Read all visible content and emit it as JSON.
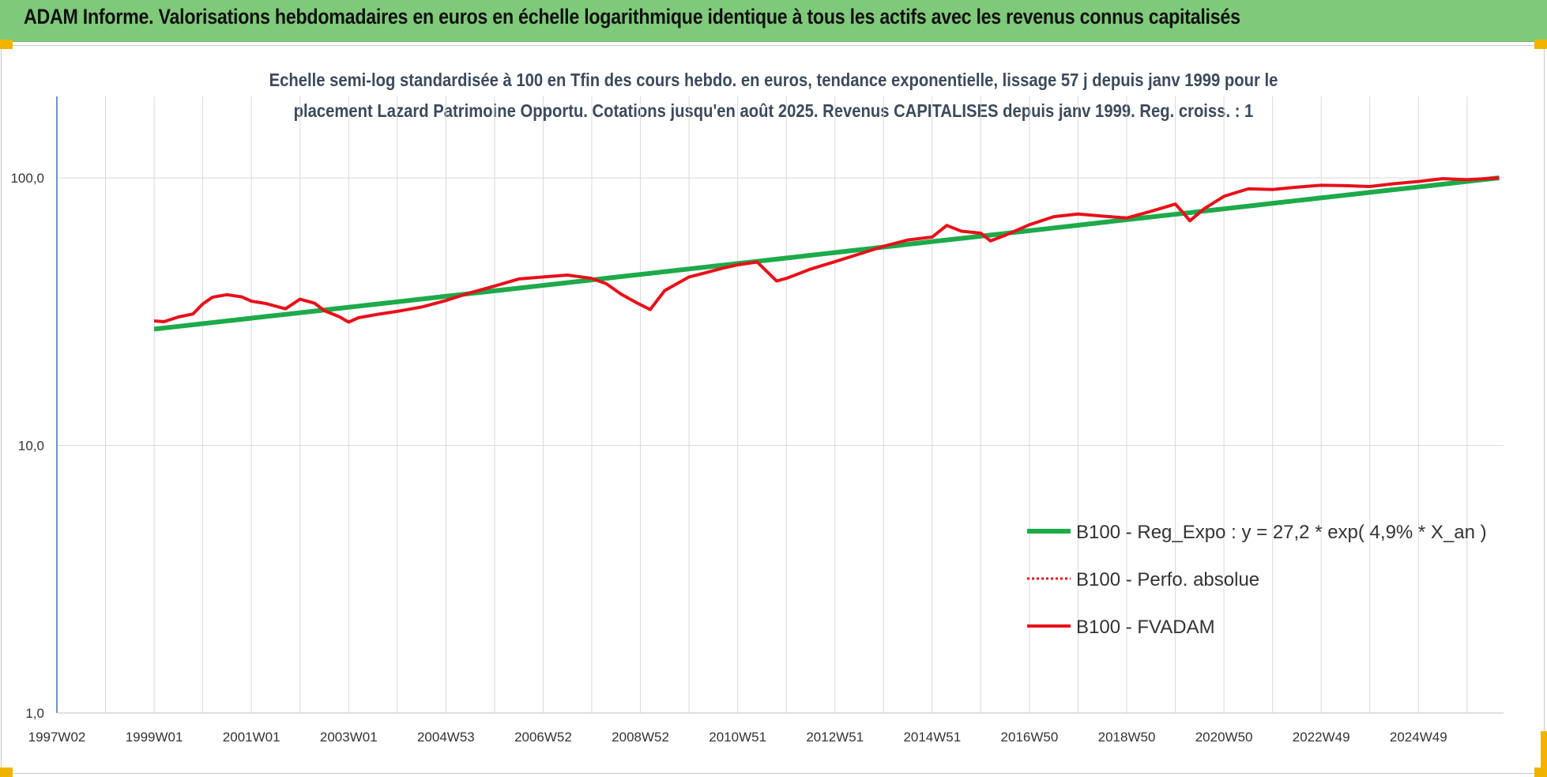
{
  "header": {
    "title": "ADAM Informe. Valorisations hebdomadaires en euros en échelle logarithmique identique à tous les actifs avec les revenus connus capitalisés"
  },
  "colors": {
    "banner": "#7fc97a",
    "trend": "#1daa4a",
    "perf": "#e8101a",
    "grid": "#d9d9d9"
  },
  "chart_data": {
    "type": "line",
    "title_line1": "Echelle semi-log standardisée à 100 en Tfin des cours hebdo. en euros, tendance exponentielle, lissage 57 j depuis janv 1999 pour le",
    "title_line2": "placement Lazard Patrimoine Opportu. Cotations jusqu'en août 2025. Revenus CAPITALISES depuis janv 1999. Reg. croiss. : 1",
    "y_scale": "log",
    "ylim": [
      1,
      200
    ],
    "y_ticks": [
      {
        "value": 100,
        "label": "100,0"
      },
      {
        "value": 10,
        "label": "10,0"
      },
      {
        "value": 1,
        "label": "1,0"
      }
    ],
    "xlim": [
      1997.0,
      2026.75
    ],
    "x_ticks": [
      {
        "value": 1997.0,
        "label": "1997W02"
      },
      {
        "value": 1999.0,
        "label": "1999W01"
      },
      {
        "value": 2001.0,
        "label": "2001W01"
      },
      {
        "value": 2003.0,
        "label": "2003W01"
      },
      {
        "value": 2005.0,
        "label": "2004W53"
      },
      {
        "value": 2007.0,
        "label": "2006W52"
      },
      {
        "value": 2009.0,
        "label": "2008W52"
      },
      {
        "value": 2011.0,
        "label": "2010W51"
      },
      {
        "value": 2013.0,
        "label": "2012W51"
      },
      {
        "value": 2015.0,
        "label": "2014W51"
      },
      {
        "value": 2017.0,
        "label": "2016W50"
      },
      {
        "value": 2019.0,
        "label": "2018W50"
      },
      {
        "value": 2021.0,
        "label": "2020W50"
      },
      {
        "value": 2023.0,
        "label": "2022W49"
      },
      {
        "value": 2025.0,
        "label": "2024W49"
      }
    ],
    "legend_position": "bottom-right",
    "grid": "vertical and horizontal",
    "series": [
      {
        "name": "B100 - Reg_Expo : y = 27,2 * exp( 4,9% *  X_an )",
        "style": "solid-green",
        "x": [
          1999.0,
          2026.66
        ],
        "y": [
          27.2,
          100.0
        ]
      },
      {
        "name": "B100 - Perfo. absolue",
        "style": "dotted-red",
        "x": [],
        "y": []
      },
      {
        "name": "B100 - FVADAM",
        "style": "solid-red",
        "x": [
          1999.0,
          1999.2,
          1999.5,
          1999.8,
          2000.0,
          2000.2,
          2000.5,
          2000.8,
          2001.0,
          2001.3,
          2001.7,
          2002.0,
          2002.3,
          2002.5,
          2002.8,
          2003.0,
          2003.2,
          2003.6,
          2004.0,
          2004.5,
          2005.0,
          2005.5,
          2006.0,
          2006.5,
          2007.0,
          2007.5,
          2008.0,
          2008.3,
          2008.6,
          2008.9,
          2009.2,
          2009.5,
          2010.0,
          2010.3,
          2010.7,
          2011.0,
          2011.4,
          2011.8,
          2012.0,
          2012.5,
          2013.0,
          2013.5,
          2014.0,
          2014.5,
          2015.0,
          2015.3,
          2015.6,
          2016.0,
          2016.2,
          2016.5,
          2017.0,
          2017.5,
          2018.0,
          2018.6,
          2019.0,
          2019.5,
          2020.0,
          2020.15,
          2020.3,
          2020.6,
          2021.0,
          2021.5,
          2022.0,
          2022.5,
          2023.0,
          2023.5,
          2024.0,
          2024.5,
          2025.0,
          2025.5,
          2026.0,
          2026.66
        ],
        "y": [
          29.2,
          29.0,
          30.2,
          31.0,
          33.8,
          35.8,
          36.6,
          35.9,
          34.6,
          33.9,
          32.4,
          35.2,
          34.0,
          31.9,
          30.3,
          28.9,
          30.0,
          30.9,
          31.7,
          32.9,
          34.8,
          37.2,
          39.4,
          41.9,
          42.6,
          43.3,
          42.1,
          40.2,
          36.8,
          34.3,
          32.2,
          37.9,
          42.6,
          44.0,
          46.0,
          47.3,
          48.5,
          41.2,
          42.1,
          45.6,
          48.6,
          51.9,
          55.5,
          58.6,
          60.1,
          66.4,
          63.2,
          62.1,
          58.1,
          61.0,
          66.8,
          71.6,
          73.3,
          71.7,
          70.8,
          75.0,
          79.8,
          74.5,
          69.1,
          76.8,
          85.3,
          91.0,
          90.5,
          92.3,
          93.8,
          93.5,
          92.8,
          95.1,
          96.9,
          99.3,
          98.4,
          100.0
        ]
      }
    ]
  }
}
